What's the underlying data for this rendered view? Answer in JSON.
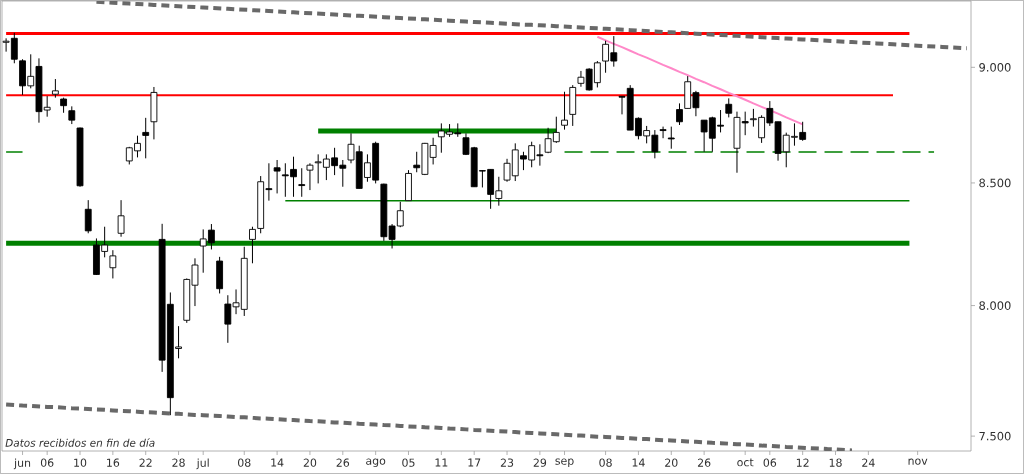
{
  "chart_data": {
    "type": "candlestick",
    "color": "#000000",
    "log": true,
    "categories": [
      null,
      null,
      "jun",
      null,
      null,
      "06",
      null,
      null,
      null,
      "10",
      null,
      null,
      null,
      "16",
      null,
      null,
      null,
      "22",
      null,
      null,
      null,
      "28",
      null,
      null,
      "jul",
      null,
      null,
      null,
      null,
      "08",
      null,
      null,
      null,
      "14",
      null,
      null,
      null,
      "20",
      null,
      null,
      null,
      "26",
      null,
      null,
      null,
      "ago",
      null,
      null,
      null,
      "05",
      null,
      null,
      null,
      "11",
      null,
      null,
      null,
      "17",
      null,
      null,
      null,
      "23",
      null,
      null,
      null,
      "29",
      null,
      null,
      "sep",
      null,
      null,
      null,
      null,
      "08",
      null,
      null,
      null,
      "14",
      null,
      null,
      null,
      "20",
      null,
      null,
      null,
      "26",
      null,
      null,
      null,
      null,
      "oct",
      null,
      null,
      "06",
      null,
      null,
      null,
      "12",
      null,
      null,
      null,
      "18",
      null,
      null,
      null,
      "24",
      null,
      null,
      null,
      null,
      null,
      "nov",
      null,
      null,
      null,
      null,
      null,
      null
    ],
    "ohlc": [
      [
        9112,
        9130,
        9070,
        9117
      ],
      [
        9130,
        9155,
        9018,
        9036
      ],
      [
        9029,
        9036,
        8878,
        8918
      ],
      [
        8918,
        9058,
        8907,
        8960
      ],
      [
        9004,
        9040,
        8757,
        8805
      ],
      [
        8812,
        8873,
        8783,
        8824
      ],
      [
        8881,
        8948,
        8866,
        8896
      ],
      [
        8860,
        8866,
        8800,
        8831
      ],
      [
        8809,
        8828,
        8751,
        8768
      ],
      [
        8734,
        8736,
        8484,
        8488
      ],
      [
        8390,
        8428,
        8291,
        8301
      ],
      [
        8243,
        8270,
        8122,
        8124
      ],
      [
        8217,
        8318,
        8193,
        8243
      ],
      [
        8151,
        8222,
        8108,
        8199
      ],
      [
        8291,
        8428,
        8277,
        8363
      ],
      [
        8593,
        8653,
        8578,
        8649
      ],
      [
        8636,
        8701,
        8608,
        8668
      ],
      [
        8715,
        8778,
        8604,
        8702
      ],
      [
        8761,
        8913,
        8685,
        8889
      ],
      [
        8266,
        8330,
        7742,
        7787
      ],
      [
        8005,
        8052,
        7578,
        7644
      ],
      [
        7832,
        7919,
        7794,
        7838
      ],
      [
        7942,
        8108,
        7932,
        8104
      ],
      [
        8081,
        8189,
        7998,
        8162
      ],
      [
        8239,
        8307,
        8131,
        8268
      ],
      [
        8304,
        8329,
        8225,
        8252
      ],
      [
        8178,
        8195,
        8048,
        8067
      ],
      [
        8006,
        8041,
        7854,
        7927
      ],
      [
        7995,
        8064,
        7966,
        8011
      ],
      [
        7985,
        8236,
        7959,
        8189
      ],
      [
        8266,
        8318,
        8169,
        8307
      ],
      [
        8311,
        8529,
        8291,
        8505
      ],
      [
        8476,
        8583,
        8426,
        8472
      ],
      [
        8564,
        8597,
        8456,
        8550
      ],
      [
        8534,
        8583,
        8442,
        8530
      ],
      [
        8557,
        8611,
        8442,
        8526
      ],
      [
        8493,
        8562,
        8442,
        8489
      ],
      [
        8554,
        8583,
        8470,
        8575
      ],
      [
        8585,
        8621,
        8498,
        8589
      ],
      [
        8566,
        8621,
        8512,
        8601
      ],
      [
        8606,
        8649,
        8533,
        8573
      ],
      [
        8575,
        8597,
        8484,
        8562
      ],
      [
        8597,
        8711,
        8583,
        8664
      ],
      [
        8632,
        8658,
        8477,
        8477
      ],
      [
        8523,
        8621,
        8505,
        8585
      ],
      [
        8668,
        8675,
        8498,
        8512
      ],
      [
        8495,
        8497,
        8260,
        8277
      ],
      [
        8321,
        8329,
        8229,
        8266
      ],
      [
        8321,
        8421,
        8316,
        8384
      ],
      [
        8426,
        8554,
        8426,
        8540
      ],
      [
        8575,
        8632,
        8545,
        8564
      ],
      [
        8536,
        8670,
        8533,
        8668
      ],
      [
        8608,
        8692,
        8578,
        8659
      ],
      [
        8696,
        8754,
        8628,
        8721
      ],
      [
        8707,
        8751,
        8696,
        8717
      ],
      [
        8713,
        8754,
        8696,
        8709
      ],
      [
        8692,
        8711,
        8618,
        8621
      ],
      [
        8649,
        8653,
        8484,
        8484
      ],
      [
        8552,
        8554,
        8481,
        8550
      ],
      [
        8557,
        8557,
        8392,
        8452
      ],
      [
        8435,
        8526,
        8405,
        8467
      ],
      [
        8512,
        8602,
        8505,
        8583
      ],
      [
        8530,
        8668,
        8508,
        8640
      ],
      [
        8615,
        8632,
        8554,
        8601
      ],
      [
        8597,
        8675,
        8566,
        8658
      ],
      [
        8619,
        8664,
        8573,
        8615
      ],
      [
        8630,
        8735,
        8626,
        8688
      ],
      [
        8675,
        8783,
        8670,
        8715
      ],
      [
        8746,
        8892,
        8727,
        8768
      ],
      [
        8793,
        8921,
        8743,
        8911
      ],
      [
        8929,
        8984,
        8914,
        8956
      ],
      [
        8992,
        8996,
        8897,
        8900
      ],
      [
        8932,
        9028,
        8911,
        9020
      ],
      [
        9028,
        9119,
        8976,
        9103
      ],
      [
        9065,
        9140,
        9003,
        9028
      ],
      [
        8872,
        8872,
        8793,
        8868
      ],
      [
        8907,
        8921,
        8725,
        8725
      ],
      [
        8776,
        8780,
        8685,
        8701
      ],
      [
        8700,
        8743,
        8668,
        8723
      ],
      [
        8703,
        8725,
        8604,
        8632
      ],
      [
        8727,
        8740,
        8690,
        8723
      ],
      [
        8691,
        8740,
        8645,
        8687
      ],
      [
        8814,
        8841,
        8747,
        8761
      ],
      [
        8819,
        8961,
        8819,
        8936
      ],
      [
        8888,
        8896,
        8785,
        8822
      ],
      [
        8768,
        8768,
        8632,
        8717
      ],
      [
        8778,
        8783,
        8632,
        8690
      ],
      [
        8746,
        8812,
        8715,
        8742
      ],
      [
        8837,
        8863,
        8780,
        8798
      ],
      [
        8647,
        8805,
        8543,
        8780
      ],
      [
        8762,
        8805,
        8703,
        8756
      ],
      [
        8770,
        8817,
        8740,
        8774
      ],
      [
        8692,
        8789,
        8670,
        8780
      ],
      [
        8819,
        8851,
        8743,
        8756
      ],
      [
        8761,
        8761,
        8594,
        8625
      ],
      [
        8632,
        8714,
        8566,
        8703
      ],
      [
        8694,
        8754,
        8658,
        8698
      ],
      [
        8715,
        8761,
        8679,
        8685
      ],
      null,
      null,
      null,
      null,
      null,
      null,
      null,
      null,
      null,
      null,
      null,
      null,
      null,
      null,
      null,
      null,
      null,
      null,
      null,
      null
    ],
    "series": [
      {
        "type": "line",
        "color": "#ff0000",
        "values": [
          9152,
          9152,
          9152,
          9152,
          9152,
          9152,
          9152,
          9152,
          9152,
          9152,
          9152,
          9152,
          9152,
          9152,
          9152,
          9152,
          9152,
          9152,
          9152,
          9152,
          9152,
          9152,
          9152,
          9152,
          9152,
          9152,
          9152,
          9152,
          9152,
          9152,
          9152,
          9152,
          9152,
          9152,
          9152,
          9152,
          9152,
          9152,
          9152,
          9152,
          9152,
          9152,
          9152,
          9152,
          9152,
          9152,
          9152,
          9152,
          9152,
          9152,
          9152,
          9152,
          9152,
          9152,
          9152,
          9152,
          9152,
          9152,
          9152,
          9152,
          9152,
          9152,
          9152,
          9152,
          9152,
          9152,
          9152,
          9152,
          9152,
          9152,
          9152,
          9152,
          9152,
          9152,
          9152,
          9152,
          9152,
          9152,
          9152,
          9152,
          9152,
          9152,
          9152,
          9152,
          9152,
          9152,
          9152,
          9152,
          9152,
          9152,
          9152,
          9152,
          9152,
          9152,
          9152,
          9152,
          9152,
          9152,
          9152,
          9152,
          9152,
          9152,
          9152,
          9152,
          9152,
          9152,
          9152,
          9152,
          9152,
          9152,
          9152,
          null,
          null,
          null,
          null,
          null,
          null,
          null
        ]
      },
      {
        "type": "line",
        "color": "#ff0000",
        "values": [
          8877,
          8877,
          8877,
          8877,
          8877,
          8877,
          8877,
          8877,
          8877,
          8877,
          8877,
          8877,
          8877,
          8877,
          8877,
          8877,
          8877,
          8877,
          8877,
          8877,
          8877,
          8877,
          8877,
          8877,
          8877,
          8877,
          8877,
          8877,
          8877,
          8877,
          8877,
          8877,
          8877,
          8877,
          8877,
          8877,
          8877,
          8877,
          8877,
          8877,
          8877,
          8877,
          8877,
          8877,
          8877,
          8877,
          8877,
          8877,
          8877,
          8877,
          8877,
          8877,
          8877,
          8877,
          8877,
          8877,
          8877,
          8877,
          8877,
          8877,
          8877,
          8877,
          8877,
          8877,
          8877,
          8877,
          8877,
          8877,
          8877,
          8877,
          8877,
          8877,
          8877,
          8877,
          8877,
          8877,
          8877,
          8877,
          8877,
          8877,
          8877,
          8877,
          8877,
          8877,
          8877,
          8877,
          8877,
          8877,
          8877,
          8877,
          8877,
          8877,
          8877,
          8877,
          8877,
          8877,
          8877,
          8877,
          8877,
          8877,
          8877,
          8877,
          8877,
          8877,
          8877,
          8877,
          8877,
          8877,
          8877,
          null,
          null,
          null,
          null,
          null,
          null,
          null,
          null,
          null
        ]
      },
      {
        "type": "line",
        "color": "#008000",
        "values": [
          null,
          null,
          null,
          null,
          null,
          null,
          null,
          null,
          null,
          null,
          null,
          null,
          null,
          null,
          null,
          null,
          null,
          null,
          null,
          null,
          null,
          null,
          null,
          null,
          null,
          null,
          null,
          null,
          null,
          null,
          null,
          null,
          null,
          null,
          null,
          null,
          null,
          null,
          8721,
          8721,
          8721,
          8721,
          8721,
          8721,
          8721,
          8721,
          8721,
          8721,
          8721,
          8721,
          8721,
          8721,
          8721,
          8721,
          8721,
          8721,
          8721,
          8721,
          8721,
          8721,
          8721,
          8721,
          8721,
          8721,
          8721,
          8721,
          8721,
          8721,
          null,
          null,
          null,
          null,
          null,
          null,
          null,
          null,
          null,
          null,
          null,
          null,
          null,
          null,
          null,
          null,
          null,
          null,
          null,
          null,
          null,
          null,
          null,
          null,
          null,
          null,
          null,
          null,
          null,
          null,
          null,
          null,
          null,
          null,
          null,
          null,
          null,
          null,
          null,
          null,
          null,
          null,
          null,
          null,
          null,
          null,
          null,
          null,
          null,
          null
        ]
      },
      {
        "type": "line",
        "color": "#008000",
        "values": [
          null,
          null,
          null,
          null,
          null,
          null,
          null,
          null,
          null,
          null,
          null,
          null,
          null,
          null,
          null,
          null,
          null,
          null,
          null,
          null,
          null,
          null,
          null,
          null,
          null,
          null,
          null,
          null,
          null,
          null,
          null,
          null,
          null,
          null,
          8425,
          8425,
          8425,
          8425,
          8425,
          8425,
          8425,
          8425,
          8425,
          8425,
          8425,
          8425,
          8425,
          8425,
          8425,
          8425,
          8425,
          8425,
          8425,
          8425,
          8425,
          8425,
          8425,
          8425,
          8425,
          8425,
          8425,
          8425,
          8425,
          8425,
          8425,
          8425,
          8425,
          8425,
          8425,
          8425,
          8425,
          8425,
          8425,
          8425,
          8425,
          8425,
          8425,
          8425,
          8425,
          8425,
          8425,
          8425,
          8425,
          8425,
          8425,
          8425,
          8425,
          8425,
          8425,
          8425,
          8425,
          8425,
          8425,
          8425,
          8425,
          8425,
          8425,
          8425,
          8425,
          8425,
          8425,
          8425,
          8425,
          8425,
          8425,
          8425,
          8425,
          8425,
          8425,
          8425,
          8425,
          null,
          null,
          null,
          null,
          null,
          null,
          null
        ]
      },
      {
        "type": "line",
        "color": "#008000",
        "values": [
          8250,
          8250,
          8250,
          8250,
          8250,
          8250,
          8250,
          8250,
          8250,
          8250,
          8250,
          8250,
          8250,
          8250,
          8250,
          8250,
          8250,
          8250,
          8250,
          8250,
          8250,
          8250,
          8250,
          8250,
          8250,
          8250,
          8250,
          8250,
          8250,
          8250,
          8250,
          8250,
          8250,
          8250,
          8250,
          8250,
          8250,
          8250,
          8250,
          8250,
          8250,
          8250,
          8250,
          8250,
          8250,
          8250,
          8250,
          8250,
          8250,
          8250,
          8250,
          8250,
          8250,
          8250,
          8250,
          8250,
          8250,
          8250,
          8250,
          8250,
          8250,
          8250,
          8250,
          8250,
          8250,
          8250,
          8250,
          8250,
          8250,
          8250,
          8250,
          8250,
          8250,
          8250,
          8250,
          8250,
          8250,
          8250,
          8250,
          8250,
          8250,
          8250,
          8250,
          8250,
          8250,
          8250,
          8250,
          8250,
          8250,
          8250,
          8250,
          8250,
          8250,
          8250,
          8250,
          8250,
          8250,
          8250,
          8250,
          8250,
          8250,
          8250,
          8250,
          8250,
          8250,
          8250,
          8250,
          8250,
          8250,
          8250,
          8250,
          null,
          null,
          null,
          null,
          null,
          null,
          null
        ]
      },
      {
        "type": "line",
        "color": "#008000",
        "line_style": "dashed",
        "values": [
          null,
          null,
          null,
          null,
          null,
          null,
          null,
          null,
          null,
          null,
          null,
          null,
          null,
          null,
          null,
          null,
          null,
          null,
          null,
          null,
          null,
          null,
          null,
          null,
          null,
          null,
          null,
          null,
          null,
          null,
          null,
          null,
          null,
          null,
          null,
          null,
          null,
          null,
          null,
          null,
          null,
          null,
          null,
          null,
          null,
          null,
          null,
          null,
          null,
          null,
          null,
          null,
          null,
          null,
          null,
          null,
          null,
          null,
          null,
          null,
          null,
          null,
          null,
          null,
          null,
          null,
          null,
          null,
          8631,
          8631,
          8631,
          8631,
          8631,
          8631,
          8631,
          8631,
          8631,
          8631,
          8631,
          8631,
          8631,
          8631,
          8631,
          8631,
          8631,
          8631,
          8631,
          8631,
          8631,
          8631,
          8631,
          8631,
          8631,
          8631,
          8631,
          8631,
          8631,
          8631,
          8631,
          8631,
          8631,
          8631,
          8631,
          8631,
          8631,
          8631,
          8631,
          8631,
          8631,
          8631,
          8631,
          8631,
          8631,
          8631,
          null,
          null,
          null,
          null
        ]
      },
      {
        "type": "line",
        "color": "#008000",
        "values": [
          8631,
          8631,
          8631,
          null,
          null,
          null,
          null,
          null,
          null,
          null,
          null,
          null,
          null,
          null,
          null,
          null,
          null,
          null,
          null,
          null,
          null,
          null,
          null,
          null,
          null,
          null,
          null,
          null,
          null,
          null,
          null,
          null,
          null,
          null,
          null,
          null,
          null,
          null,
          null,
          null,
          null,
          null,
          null,
          null,
          null,
          null,
          null,
          null,
          null,
          null,
          null,
          null,
          null,
          null,
          null,
          null,
          null,
          null,
          null,
          null,
          null,
          null,
          null,
          null,
          null,
          null,
          null,
          null,
          null,
          null,
          null,
          null,
          null,
          null,
          null,
          null,
          null,
          null,
          null,
          null,
          null,
          null,
          null,
          null,
          null,
          null,
          null,
          null,
          null,
          null,
          null,
          null,
          null,
          null,
          null,
          null,
          null,
          null,
          null,
          null,
          null,
          null,
          null,
          null,
          null,
          null,
          null,
          null,
          null,
          null,
          null,
          null,
          null,
          null,
          null,
          null,
          null,
          null
        ]
      },
      {
        "type": "line",
        "color": "#ff88c8",
        "values": [
          null,
          null,
          null,
          null,
          null,
          null,
          null,
          null,
          null,
          null,
          null,
          null,
          null,
          null,
          null,
          null,
          null,
          null,
          null,
          null,
          null,
          null,
          null,
          null,
          null,
          null,
          null,
          null,
          null,
          null,
          null,
          null,
          null,
          null,
          null,
          null,
          null,
          null,
          null,
          null,
          null,
          null,
          null,
          null,
          null,
          null,
          null,
          null,
          null,
          null,
          null,
          null,
          null,
          null,
          null,
          null,
          null,
          null,
          null,
          null,
          null,
          null,
          null,
          null,
          null,
          null,
          null,
          null,
          null,
          null,
          null,
          null,
          9137,
          9121,
          9105,
          9090,
          9074,
          9058,
          9043,
          9027,
          9011,
          8996,
          8980,
          8965,
          8949,
          8934,
          8918,
          8903,
          8887,
          8872,
          8857,
          8841,
          8826,
          8811,
          8796,
          8780,
          8765,
          8750,
          null,
          null,
          null,
          null,
          null,
          null,
          null,
          null,
          null,
          null,
          null,
          null,
          null,
          null,
          null,
          null,
          null,
          null,
          null,
          null
        ]
      },
      {
        "type": "line",
        "color": "#696969",
        "line_style": "dotted",
        "values": [
          null,
          null,
          null,
          null,
          null,
          null,
          null,
          null,
          null,
          null,
          null,
          9296,
          9294,
          9292,
          9290,
          9288,
          9286,
          9284,
          9282,
          9280,
          9278,
          9276,
          9274,
          9272,
          9270,
          9268,
          9266,
          9264,
          9262,
          9260,
          9258,
          9256,
          9254,
          9252,
          9250,
          9248,
          9246,
          9244,
          9242,
          9240,
          9238,
          9236,
          9234,
          9232,
          9230,
          9228,
          9226,
          9224,
          9222,
          9220,
          9218,
          9216,
          9214,
          9212,
          9210,
          9208,
          9206,
          9204,
          9202,
          9200,
          9198,
          9196,
          9194,
          9192,
          9191,
          9189,
          9187,
          9185,
          9183,
          9181,
          9179,
          9177,
          9175,
          9173,
          9171,
          9169,
          9167,
          9165,
          9163,
          9161,
          9159,
          9157,
          9155,
          9153,
          9151,
          9149,
          9147,
          9145,
          9143,
          9141,
          9139,
          9137,
          9135,
          9133,
          9131,
          9129,
          9127,
          9125,
          9123,
          9121,
          9119,
          9117,
          9115,
          9113,
          9111,
          9109,
          9107,
          9105,
          9103,
          9101,
          9099,
          9097,
          9095,
          9093,
          9091,
          9089,
          9087,
          9085
        ]
      },
      {
        "type": "line",
        "color": "#696969",
        "line_style": "dotted",
        "values": [
          7618,
          7616,
          7614,
          7613,
          7611,
          7609,
          7608,
          7606,
          7604,
          7603,
          7601,
          7599,
          7598,
          7596,
          7594,
          7593,
          7591,
          7589,
          7588,
          7586,
          7584,
          7583,
          7581,
          7579,
          7578,
          7576,
          7575,
          7573,
          7571,
          7570,
          7568,
          7566,
          7565,
          7563,
          7561,
          7560,
          7558,
          7556,
          7555,
          7553,
          7551,
          7550,
          7548,
          7546,
          7545,
          7543,
          7541,
          7540,
          7538,
          7536,
          7535,
          7533,
          7532,
          7530,
          7528,
          7527,
          7525,
          7523,
          7522,
          7520,
          7518,
          7517,
          7515,
          7513,
          7512,
          7510,
          7508,
          7507,
          7505,
          7503,
          7502,
          7500,
          7498,
          7497,
          7495,
          7493,
          7492,
          7490,
          7489,
          7487,
          7485,
          7484,
          7482,
          7480,
          7479,
          7477,
          7475,
          7474,
          7472,
          7470,
          7469,
          7467,
          7465,
          7464,
          7462,
          7460,
          7459,
          7457,
          7455,
          7454,
          7452,
          7451,
          7449,
          7447,
          null,
          null,
          null,
          null,
          null,
          null,
          null,
          null,
          null,
          null,
          null,
          null,
          null,
          null
        ]
      }
    ],
    "ylim": [
      7445,
      9300
    ],
    "yticks": [
      {
        "value": 7500,
        "label": "7.500"
      },
      {
        "value": 8000,
        "label": "8.000"
      },
      {
        "value": 8500,
        "label": "8.500"
      },
      {
        "value": 9000,
        "label": "9.000"
      }
    ],
    "annotations": [
      "Datos recibidos en fin de día"
    ]
  }
}
